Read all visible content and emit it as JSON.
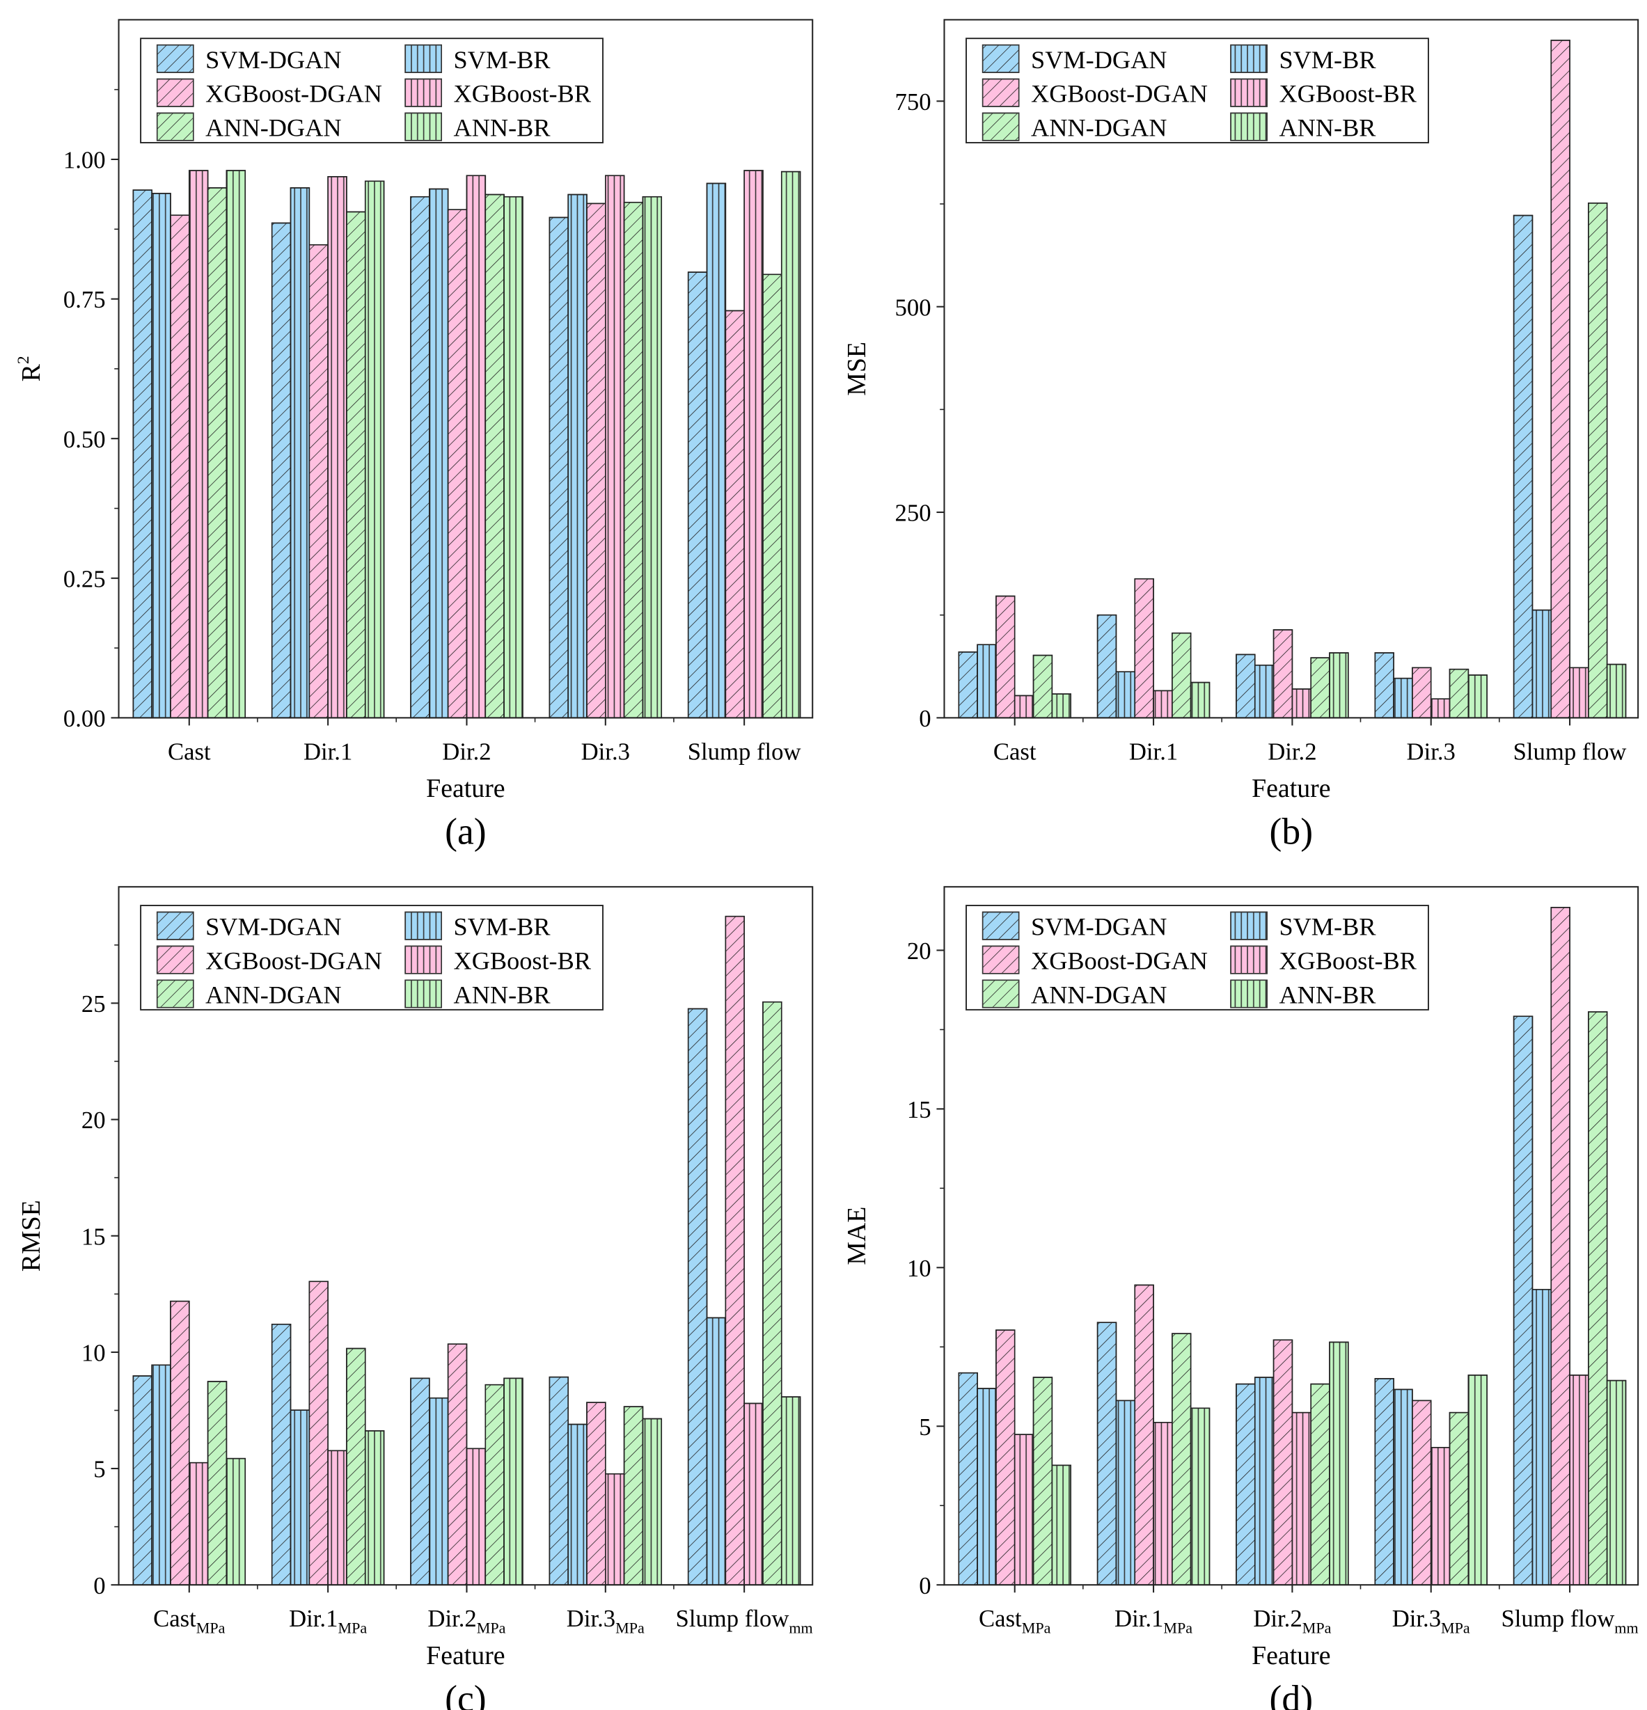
{
  "series_style": [
    {
      "name": "SVM-DGAN",
      "color": "#a3d8f7",
      "hatch": "diagonal"
    },
    {
      "name": "SVM-BR",
      "color": "#a3d8f7",
      "hatch": "vertical"
    },
    {
      "name": "XGBoost-DGAN",
      "color": "#ffc0e0",
      "hatch": "diagonal"
    },
    {
      "name": "XGBoost-BR",
      "color": "#ffc0e0",
      "hatch": "vertical"
    },
    {
      "name": "ANN-DGAN",
      "color": "#c2f5c2",
      "hatch": "diagonal"
    },
    {
      "name": "ANN-BR",
      "color": "#c2f5c2",
      "hatch": "vertical"
    }
  ],
  "chart_data": [
    {
      "type": "bar",
      "panel": "(a)",
      "xlabel": "Feature",
      "ylabel": "R",
      "ylabel_sup": "2",
      "ylim": [
        0,
        1.25
      ],
      "yticks": [
        0,
        0.25,
        0.5,
        0.75,
        1.0
      ],
      "ytick_labels": [
        "0.00",
        "0.25",
        "0.50",
        "0.75",
        "1.00"
      ],
      "legend": "top-left",
      "grid": false,
      "categories": [
        {
          "main": "Cast",
          "sub": ""
        },
        {
          "main": "Dir.1",
          "sub": ""
        },
        {
          "main": "Dir.2",
          "sub": ""
        },
        {
          "main": "Dir.3",
          "sub": ""
        },
        {
          "main": "Slump flow",
          "sub": ""
        }
      ],
      "series": [
        {
          "name": "SVM-DGAN",
          "values": [
            0.945,
            0.886,
            0.933,
            0.896,
            0.798
          ]
        },
        {
          "name": "SVM-BR",
          "values": [
            0.939,
            0.949,
            0.947,
            0.937,
            0.957
          ]
        },
        {
          "name": "XGBoost-DGAN",
          "values": [
            0.9,
            0.847,
            0.91,
            0.921,
            0.729
          ]
        },
        {
          "name": "XGBoost-BR",
          "values": [
            0.98,
            0.969,
            0.971,
            0.971,
            0.98
          ]
        },
        {
          "name": "ANN-DGAN",
          "values": [
            0.949,
            0.906,
            0.937,
            0.923,
            0.794
          ]
        },
        {
          "name": "ANN-BR",
          "values": [
            0.98,
            0.961,
            0.933,
            0.933,
            0.978
          ]
        }
      ]
    },
    {
      "type": "bar",
      "panel": "(b)",
      "xlabel": "Feature",
      "ylabel": "MSE",
      "ylabel_sup": "",
      "ylim": [
        0,
        849
      ],
      "yticks": [
        0,
        250,
        500,
        750
      ],
      "ytick_labels": [
        "0",
        "250",
        "500",
        "750"
      ],
      "legend": "top-left",
      "grid": false,
      "categories": [
        {
          "main": "Cast",
          "sub": ""
        },
        {
          "main": "Dir.1",
          "sub": ""
        },
        {
          "main": "Dir.2",
          "sub": ""
        },
        {
          "main": "Dir.3",
          "sub": ""
        },
        {
          "main": "Slump flow",
          "sub": ""
        }
      ],
      "series": [
        {
          "name": "SVM-DGAN",
          "values": [
            80,
            125,
            77,
            79,
            611
          ]
        },
        {
          "name": "SVM-BR",
          "values": [
            89,
            56,
            64,
            48,
            131
          ]
        },
        {
          "name": "XGBoost-DGAN",
          "values": [
            148,
            169,
            107,
            61,
            824
          ]
        },
        {
          "name": "XGBoost-BR",
          "values": [
            27,
            33,
            35,
            23,
            61
          ]
        },
        {
          "name": "ANN-DGAN",
          "values": [
            76,
            103,
            73,
            59,
            626
          ]
        },
        {
          "name": "ANN-BR",
          "values": [
            29,
            43,
            79,
            52,
            65
          ]
        }
      ]
    },
    {
      "type": "bar",
      "panel": "(c)",
      "xlabel": "Feature",
      "ylabel": "RMSE",
      "ylabel_sup": "",
      "ylim": [
        0,
        30
      ],
      "yticks": [
        0,
        5,
        10,
        15,
        20,
        25
      ],
      "ytick_labels": [
        "0",
        "5",
        "10",
        "15",
        "20",
        "25"
      ],
      "legend": "top-left",
      "grid": false,
      "categories": [
        {
          "main": "Cast",
          "sub": "MPa"
        },
        {
          "main": "Dir.1",
          "sub": "MPa"
        },
        {
          "main": "Dir.2",
          "sub": "MPa"
        },
        {
          "main": "Dir.3",
          "sub": "MPa"
        },
        {
          "main": "Slump flow",
          "sub": "mm"
        }
      ],
      "series": [
        {
          "name": "SVM-DGAN",
          "values": [
            8.98,
            11.2,
            8.88,
            8.93,
            24.76
          ]
        },
        {
          "name": "SVM-BR",
          "values": [
            9.45,
            7.51,
            8.03,
            6.9,
            11.48
          ]
        },
        {
          "name": "XGBoost-DGAN",
          "values": [
            12.19,
            13.04,
            10.35,
            7.84,
            28.73
          ]
        },
        {
          "name": "XGBoost-BR",
          "values": [
            5.25,
            5.77,
            5.86,
            4.77,
            7.8
          ]
        },
        {
          "name": "ANN-DGAN",
          "values": [
            8.74,
            10.16,
            8.6,
            7.66,
            25.05
          ]
        },
        {
          "name": "ANN-BR",
          "values": [
            5.43,
            6.62,
            8.88,
            7.14,
            8.08
          ]
        }
      ]
    },
    {
      "type": "bar",
      "panel": "(d)",
      "xlabel": "Feature",
      "ylabel": "MAE",
      "ylabel_sup": "",
      "ylim": [
        0,
        22
      ],
      "yticks": [
        0,
        5,
        10,
        15,
        20
      ],
      "ytick_labels": [
        "0",
        "5",
        "10",
        "15",
        "20"
      ],
      "legend": "top-left",
      "grid": false,
      "categories": [
        {
          "main": "Cast",
          "sub": "MPa"
        },
        {
          "main": "Dir.1",
          "sub": "MPa"
        },
        {
          "main": "Dir.2",
          "sub": "MPa"
        },
        {
          "main": "Dir.3",
          "sub": "MPa"
        },
        {
          "main": "Slump flow",
          "sub": "mm"
        }
      ],
      "series": [
        {
          "name": "SVM-DGAN",
          "values": [
            6.68,
            8.27,
            6.33,
            6.5,
            17.92
          ]
        },
        {
          "name": "SVM-BR",
          "values": [
            6.19,
            5.81,
            6.54,
            6.16,
            9.31
          ]
        },
        {
          "name": "XGBoost-DGAN",
          "values": [
            8.03,
            9.45,
            7.72,
            5.81,
            21.35
          ]
        },
        {
          "name": "XGBoost-BR",
          "values": [
            4.74,
            5.12,
            5.43,
            4.33,
            6.61
          ]
        },
        {
          "name": "ANN-DGAN",
          "values": [
            6.54,
            7.92,
            6.33,
            5.43,
            18.06
          ]
        },
        {
          "name": "ANN-BR",
          "values": [
            3.77,
            5.57,
            7.65,
            6.61,
            6.44
          ]
        }
      ]
    }
  ]
}
